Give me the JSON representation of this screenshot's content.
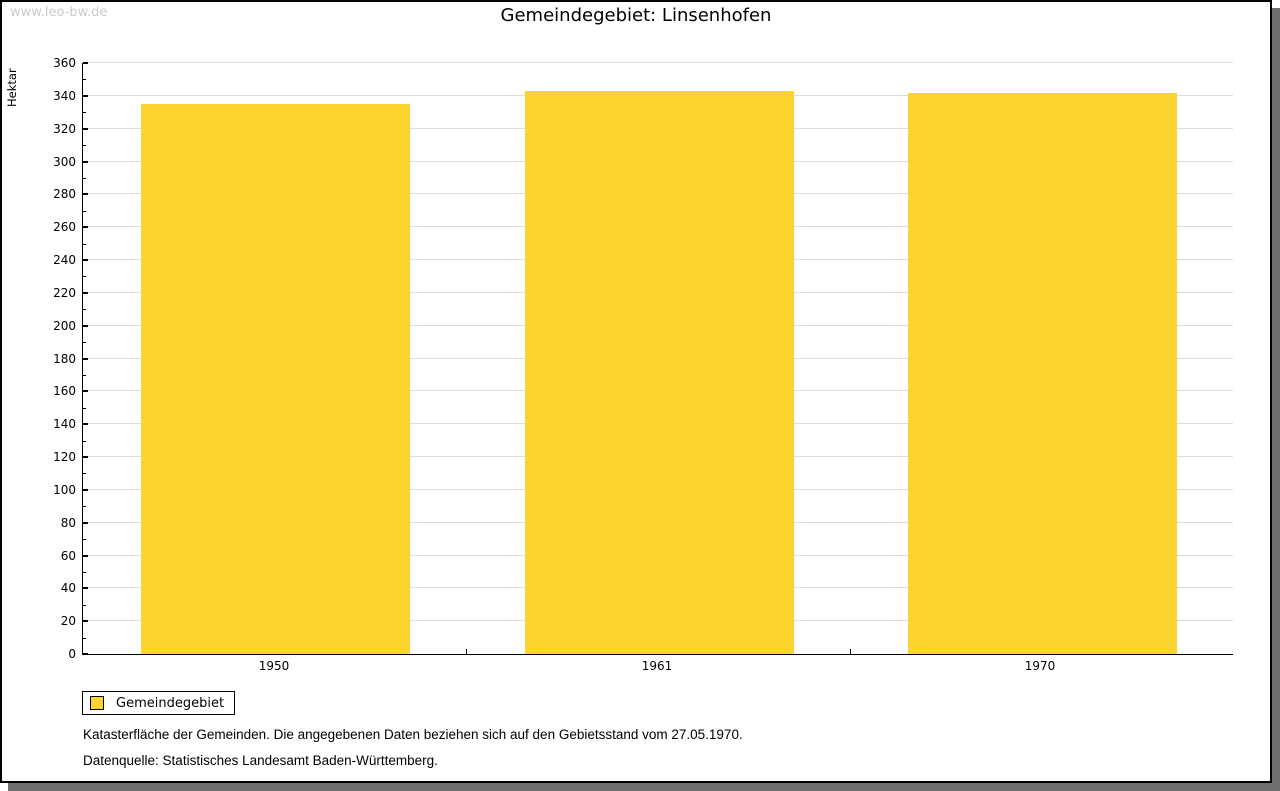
{
  "watermark": "www.leo-bw.de",
  "title": "Gemeindegebiet: Linsenhofen",
  "chart_data": {
    "type": "bar",
    "title": "Gemeindegebiet: Linsenhofen",
    "categories": [
      "1950",
      "1961",
      "1970"
    ],
    "series": [
      {
        "name": "Gemeindegebiet",
        "values": [
          335,
          343,
          342
        ]
      }
    ],
    "xlabel": "",
    "ylabel": "Hektar",
    "ylim": [
      0,
      360
    ],
    "ytick_step": 20,
    "ytick_minor_step": 10,
    "grid": true,
    "legend_position": "bottom-left",
    "bar_color": "#FCD42F"
  },
  "legend": {
    "items": [
      {
        "label": "Gemeindegebiet",
        "color": "#FCD42F"
      }
    ]
  },
  "footer": {
    "line1": "Katasterfläche der Gemeinden. Die angegebenen Daten beziehen sich auf den Gebietsstand vom 27.05.1970.",
    "line2": "Datenquelle: Statistisches Landesamt Baden-Württemberg."
  }
}
